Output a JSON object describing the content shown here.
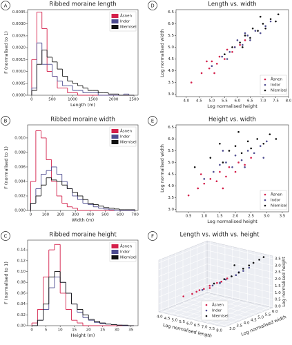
{
  "chart_data": [
    {
      "type": "histogram",
      "label": "A",
      "title": "Ribbed moraine length",
      "xlabel": "Length (m)",
      "ylabel": "F (normalised to 1)",
      "xlim": [
        -100,
        2600
      ],
      "xticks": [
        0,
        500,
        1000,
        1500,
        2000,
        2500
      ],
      "ylim": [
        0,
        0.0036
      ],
      "yticks": [
        {
          "value": 0,
          "label": "0.0000"
        },
        {
          "value": 0.0005,
          "label": "0.0005"
        },
        {
          "value": 0.001,
          "label": "0.0010"
        },
        {
          "value": 0.0015,
          "label": "0.0015"
        },
        {
          "value": 0.002,
          "label": "0.0020"
        },
        {
          "value": 0.0025,
          "label": "0.0025"
        },
        {
          "value": 0.003,
          "label": "0.0030"
        },
        {
          "value": 0.0035,
          "label": "0.0035"
        }
      ],
      "legend": "upper right",
      "bins": [
        0,
        125,
        250,
        375,
        500,
        625,
        750,
        875,
        1000,
        1125,
        1250,
        1375,
        1500,
        1625,
        1750,
        1875,
        2000,
        2125,
        2250,
        2375,
        2500
      ],
      "series": [
        {
          "name": "Åsnen",
          "color": "#d41f4a",
          "values": [
            0.0015,
            0.0035,
            0.0028,
            0.001,
            0.0008,
            0.0003,
            0.0003,
            0.0001,
            0.0001,
            0,
            0,
            0,
            0,
            0,
            0,
            0,
            0,
            0,
            0,
            0
          ]
        },
        {
          "name": "Indor",
          "color": "#4d4b8f",
          "values": [
            0.0003,
            0.0022,
            0.0013,
            0.0013,
            0.0008,
            0.0006,
            0.0004,
            0.0004,
            0.0002,
            0.0002,
            0.0001,
            0.0001,
            0.0001,
            0,
            0,
            0,
            0,
            0,
            5e-05,
            0
          ]
        },
        {
          "name": "Niemisel",
          "color": "#111111",
          "values": [
            0.0002,
            0.0013,
            0.0019,
            0.0016,
            0.0014,
            0.0011,
            0.0008,
            0.0006,
            0.0005,
            0.0004,
            0.0003,
            0.0002,
            0.0002,
            0.0001,
            0.0001,
            5e-05,
            5e-05,
            0,
            0,
            0
          ]
        }
      ]
    },
    {
      "type": "histogram",
      "label": "B",
      "title": "Ribbed moraine width",
      "xlabel": "Width (m)",
      "ylabel": "F (normalised to 1)",
      "xlim": [
        -20,
        720
      ],
      "xticks": [
        0,
        100,
        200,
        300,
        400,
        500,
        600,
        700
      ],
      "ylim": [
        0,
        0.0118
      ],
      "yticks": [
        {
          "value": 0,
          "label": "0.000"
        },
        {
          "value": 0.002,
          "label": "0.002"
        },
        {
          "value": 0.004,
          "label": "0.004"
        },
        {
          "value": 0.006,
          "label": "0.006"
        },
        {
          "value": 0.008,
          "label": "0.008"
        },
        {
          "value": 0.01,
          "label": "0.010"
        }
      ],
      "legend": "upper right",
      "bins": [
        0,
        35,
        70,
        105,
        140,
        175,
        210,
        245,
        280,
        315,
        350,
        385,
        420,
        455,
        490,
        525,
        560,
        595,
        630,
        665,
        700
      ],
      "series": [
        {
          "name": "Åsnen",
          "color": "#d41f4a",
          "values": [
            0.004,
            0.011,
            0.01,
            0.007,
            0.004,
            0.002,
            0.001,
            0.0005,
            0.0003,
            0,
            0,
            0,
            0,
            0,
            0,
            0,
            0,
            0,
            0,
            0
          ]
        },
        {
          "name": "Indor",
          "color": "#4d4b8f",
          "values": [
            0.001,
            0.003,
            0.005,
            0.0055,
            0.006,
            0.005,
            0.004,
            0.003,
            0.002,
            0.0015,
            0.001,
            0.0008,
            0.0005,
            0.0003,
            0.0002,
            0.0001,
            0,
            0,
            0,
            0
          ]
        },
        {
          "name": "Niemisel",
          "color": "#111111",
          "values": [
            0.001,
            0.002,
            0.0035,
            0.0045,
            0.0042,
            0.004,
            0.0035,
            0.003,
            0.0025,
            0.002,
            0.0015,
            0.001,
            0.0008,
            0.0006,
            0.0004,
            0.0003,
            0.0002,
            0.0001,
            0.0001,
            0.0001
          ]
        }
      ]
    },
    {
      "type": "histogram",
      "label": "C",
      "title": "Ribbed moraine height",
      "xlabel": "Height (m)",
      "ylabel": "F (normalised to 1)",
      "xlim": [
        -1.5,
        37.5
      ],
      "xticks": [
        0,
        5,
        10,
        15,
        20,
        25,
        30,
        35
      ],
      "ylim": [
        0,
        0.158
      ],
      "yticks": [
        {
          "value": 0,
          "label": "0.00"
        },
        {
          "value": 0.02,
          "label": "0.02"
        },
        {
          "value": 0.04,
          "label": "0.04"
        },
        {
          "value": 0.06,
          "label": "0.06"
        },
        {
          "value": 0.08,
          "label": "0.08"
        },
        {
          "value": 0.1,
          "label": "0.10"
        },
        {
          "value": 0.12,
          "label": "0.12"
        },
        {
          "value": 0.14,
          "label": "0.14"
        }
      ],
      "legend": "upper right",
      "bins": [
        0,
        2,
        4,
        6,
        8,
        10,
        12,
        14,
        16,
        18,
        20,
        22,
        24,
        26,
        28,
        30,
        32,
        34,
        36
      ],
      "series": [
        {
          "name": "Åsnen",
          "color": "#d41f4a",
          "values": [
            0.005,
            0.03,
            0.09,
            0.14,
            0.15,
            0.06,
            0.03,
            0.01,
            0.005,
            0,
            0,
            0,
            0,
            0,
            0,
            0,
            0,
            0
          ]
        },
        {
          "name": "Indor",
          "color": "#4d4b8f",
          "values": [
            0,
            0.01,
            0.03,
            0.07,
            0.09,
            0.08,
            0.06,
            0.04,
            0.025,
            0.015,
            0.01,
            0.006,
            0.004,
            0.003,
            0.002,
            0.001,
            0,
            0
          ]
        },
        {
          "name": "Niemisel",
          "color": "#111111",
          "values": [
            0,
            0.01,
            0.04,
            0.09,
            0.1,
            0.08,
            0.06,
            0.04,
            0.03,
            0.02,
            0.012,
            0.008,
            0.005,
            0.003,
            0.002,
            0.001,
            0.001,
            0
          ]
        }
      ]
    },
    {
      "type": "scatter",
      "label": "D",
      "title": "Length vs. width",
      "xlabel": "Log normalised height",
      "ylabel": "Log normalised width",
      "xlim": [
        3.6,
        8.0
      ],
      "xticks": [
        {
          "value": 4.0,
          "label": "4.0"
        },
        {
          "value": 4.5,
          "label": "4.5"
        },
        {
          "value": 5.0,
          "label": "5.0"
        },
        {
          "value": 5.5,
          "label": "5.5"
        },
        {
          "value": 6.0,
          "label": "6.0"
        },
        {
          "value": 6.5,
          "label": "6.5"
        },
        {
          "value": 7.0,
          "label": "7.0"
        },
        {
          "value": 7.5,
          "label": "7.5"
        },
        {
          "value": 8.0,
          "label": "8.0"
        }
      ],
      "ylim": [
        2.9,
        6.6
      ],
      "yticks": [
        {
          "value": 3.0,
          "label": "3.0"
        },
        {
          "value": 3.5,
          "label": "3.5"
        },
        {
          "value": 4.0,
          "label": "4.0"
        },
        {
          "value": 4.5,
          "label": "4.5"
        },
        {
          "value": 5.0,
          "label": "5.0"
        },
        {
          "value": 5.5,
          "label": "5.5"
        },
        {
          "value": 6.0,
          "label": "6.0"
        },
        {
          "value": 6.5,
          "label": "6.5"
        }
      ],
      "legend": "lower right",
      "series": [
        {
          "name": "Åsnen",
          "color": "#d41f4a",
          "x": [
            4.2,
            4.6,
            4.9,
            5.0,
            5.2,
            5.3,
            5.5,
            5.6,
            5.8,
            5.9,
            6.1,
            6.3,
            5.1,
            4.8
          ],
          "y": [
            3.5,
            3.9,
            4.1,
            4.4,
            4.3,
            4.6,
            4.5,
            4.9,
            4.8,
            5.0,
            5.1,
            5.3,
            3.9,
            4.4
          ]
        },
        {
          "name": "Indor",
          "color": "#4d4b8f",
          "x": [
            5.0,
            5.4,
            5.7,
            5.9,
            6.0,
            6.2,
            6.4,
            6.5,
            6.7,
            6.9,
            7.1,
            5.6,
            6.3,
            7.3
          ],
          "y": [
            4.2,
            4.6,
            4.8,
            5.0,
            5.3,
            5.1,
            5.5,
            5.3,
            5.7,
            5.6,
            5.9,
            4.5,
            5.6,
            6.1
          ]
        },
        {
          "name": "Niemisel",
          "color": "#111111",
          "x": [
            5.5,
            5.8,
            6.1,
            6.3,
            6.5,
            6.6,
            6.8,
            7.0,
            7.1,
            7.3,
            7.5,
            7.6,
            6.2,
            6.9
          ],
          "y": [
            4.7,
            5.0,
            5.2,
            5.5,
            5.4,
            5.8,
            5.7,
            6.0,
            5.8,
            6.2,
            6.1,
            6.4,
            5.0,
            6.3
          ]
        }
      ]
    },
    {
      "type": "scatter",
      "label": "E",
      "title": "Height vs. width",
      "xlabel": "Log normalised height",
      "ylabel": "Log normalised width",
      "xlim": [
        0.1,
        3.7
      ],
      "xticks": [
        {
          "value": 0.5,
          "label": "0.5"
        },
        {
          "value": 1.0,
          "label": "1.0"
        },
        {
          "value": 1.5,
          "label": "1.5"
        },
        {
          "value": 2.0,
          "label": "2.0"
        },
        {
          "value": 2.5,
          "label": "2.5"
        },
        {
          "value": 3.0,
          "label": "3.0"
        },
        {
          "value": 3.5,
          "label": "3.5"
        }
      ],
      "ylim": [
        2.9,
        6.6
      ],
      "yticks": [
        {
          "value": 3.0,
          "label": "3.0"
        },
        {
          "value": 3.5,
          "label": "3.5"
        },
        {
          "value": 4.0,
          "label": "4.0"
        },
        {
          "value": 4.5,
          "label": "4.5"
        },
        {
          "value": 5.0,
          "label": "5.0"
        },
        {
          "value": 5.5,
          "label": "5.5"
        },
        {
          "value": 6.0,
          "label": "6.0"
        },
        {
          "value": 6.5,
          "label": "6.5"
        }
      ],
      "legend": "lower right",
      "series": [
        {
          "name": "Åsnen",
          "color": "#d41f4a",
          "x": [
            0.5,
            0.8,
            1.0,
            1.2,
            1.4,
            1.5,
            1.7,
            1.8,
            2.0,
            2.1,
            2.3,
            2.5,
            0.9,
            1.6
          ],
          "y": [
            3.6,
            3.9,
            4.1,
            4.3,
            4.2,
            4.6,
            4.4,
            4.8,
            4.6,
            5.0,
            4.9,
            5.2,
            4.5,
            3.9
          ]
        },
        {
          "name": "Indor",
          "color": "#4d4b8f",
          "x": [
            1.0,
            1.3,
            1.5,
            1.7,
            1.9,
            2.0,
            2.2,
            2.4,
            2.6,
            2.8,
            3.0,
            1.6,
            2.3,
            2.9
          ],
          "y": [
            4.3,
            4.6,
            4.9,
            5.0,
            4.8,
            5.3,
            5.1,
            5.5,
            5.4,
            5.7,
            5.9,
            5.5,
            4.8,
            5.2
          ]
        },
        {
          "name": "Niemisel",
          "color": "#111111",
          "x": [
            0.7,
            1.2,
            1.6,
            1.8,
            2.0,
            2.2,
            2.4,
            2.5,
            2.7,
            2.9,
            3.1,
            3.3,
            2.1,
            1.5
          ],
          "y": [
            4.8,
            5.2,
            5.0,
            5.5,
            5.7,
            5.4,
            5.9,
            5.6,
            6.0,
            5.8,
            6.2,
            6.0,
            6.3,
            5.8
          ]
        }
      ]
    },
    {
      "type": "scatter3d",
      "label": "F",
      "title": "Length vs. width vs. height",
      "xlabel": "Log normalised length",
      "ylabel": "Log normalised width",
      "zlabel": "Log normalised height",
      "xlim": [
        3.8,
        8.2
      ],
      "xticks": [
        {
          "value": 4.0,
          "label": "4.0"
        },
        {
          "value": 4.5,
          "label": "4.5"
        },
        {
          "value": 5.0,
          "label": "5.0"
        },
        {
          "value": 5.5,
          "label": "5.5"
        },
        {
          "value": 6.0,
          "label": "6.0"
        },
        {
          "value": 6.5,
          "label": "6.5"
        },
        {
          "value": 7.0,
          "label": "7.0"
        },
        {
          "value": 7.5,
          "label": "7.5"
        },
        {
          "value": 8.0,
          "label": "8.0"
        }
      ],
      "ylim": [
        2.8,
        6.2
      ],
      "yticks": [
        {
          "value": 3.0,
          "label": "3.0"
        },
        {
          "value": 3.5,
          "label": "3.5"
        },
        {
          "value": 4.0,
          "label": "4.0"
        },
        {
          "value": 4.5,
          "label": "4.5"
        },
        {
          "value": 5.0,
          "label": "5.0"
        },
        {
          "value": 5.5,
          "label": "5.5"
        },
        {
          "value": 6.0,
          "label": "6.0"
        }
      ],
      "zlim": [
        -0.1,
        3.7
      ],
      "zticks": [
        {
          "value": 0.0,
          "label": "0.0"
        },
        {
          "value": 0.5,
          "label": "0.5"
        },
        {
          "value": 1.0,
          "label": "1.0"
        },
        {
          "value": 1.5,
          "label": "1.5"
        },
        {
          "value": 2.0,
          "label": "2.0"
        },
        {
          "value": 2.5,
          "label": "2.5"
        },
        {
          "value": 3.0,
          "label": "3.0"
        },
        {
          "value": 3.5,
          "label": "3.5"
        }
      ],
      "legend": "lower center",
      "series": [
        {
          "name": "Åsnen",
          "color": "#d41f4a",
          "x": [
            4.5,
            4.9,
            5.1,
            5.3,
            5.5,
            5.6,
            5.8,
            6.0,
            6.2,
            5.0
          ],
          "y": [
            3.8,
            4.0,
            4.3,
            4.4,
            4.6,
            4.5,
            4.8,
            4.9,
            5.1,
            4.2
          ],
          "z": [
            0.8,
            1.0,
            1.2,
            1.3,
            1.5,
            1.4,
            1.7,
            1.8,
            2.0,
            1.1
          ]
        },
        {
          "name": "Indor",
          "color": "#4d4b8f",
          "x": [
            5.2,
            5.6,
            5.9,
            6.1,
            6.3,
            6.5,
            6.8,
            7.0,
            5.8,
            6.6
          ],
          "y": [
            4.4,
            4.7,
            4.9,
            5.1,
            5.3,
            5.4,
            5.6,
            5.8,
            5.0,
            5.5
          ],
          "z": [
            1.2,
            1.5,
            1.7,
            1.9,
            2.1,
            2.2,
            2.5,
            2.7,
            1.6,
            2.4
          ]
        },
        {
          "name": "Niemisel",
          "color": "#111111",
          "x": [
            5.6,
            6.0,
            6.3,
            6.5,
            6.7,
            6.9,
            7.1,
            7.3,
            7.5,
            6.4
          ],
          "y": [
            4.8,
            5.1,
            5.3,
            5.6,
            5.7,
            5.9,
            6.0,
            6.2,
            6.3,
            5.4
          ],
          "z": [
            1.6,
            1.9,
            2.1,
            2.3,
            2.6,
            2.8,
            3.0,
            3.2,
            3.4,
            2.9
          ]
        }
      ]
    }
  ]
}
